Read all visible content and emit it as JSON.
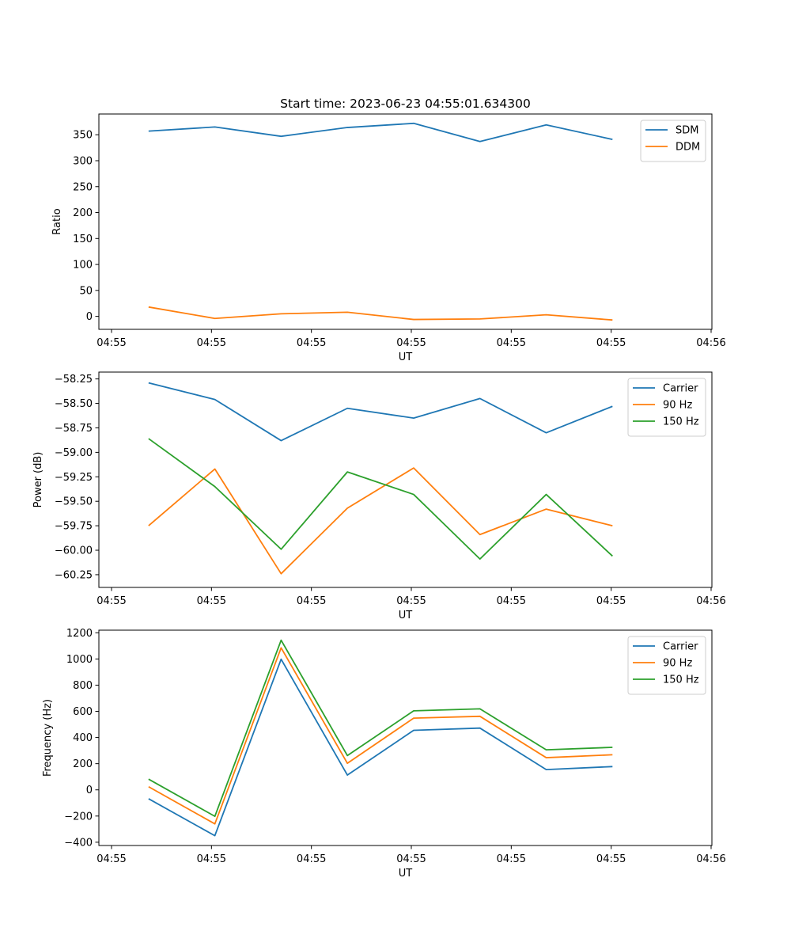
{
  "figure": {
    "title": "Start time: 2023-06-23 04:55:01.634300"
  },
  "chart_data": [
    {
      "type": "line",
      "title": "Start time: 2023-06-23 04:55:01.634300",
      "xlabel": "UT",
      "ylabel": "Ratio",
      "x_tick_labels": [
        "04:55",
        "04:55",
        "04:55",
        "04:55",
        "04:55",
        "04:55",
        "04:55"
      ],
      "x_last_tick_label": "04:56",
      "xlim": [
        0,
        9.25
      ],
      "x": [
        0.75,
        1.75,
        2.75,
        3.75,
        4.75,
        5.75,
        6.75,
        7.75
      ],
      "ylim": [
        -25,
        390
      ],
      "yticks": [
        0,
        50,
        100,
        150,
        200,
        250,
        300,
        350
      ],
      "grid": false,
      "legend": "upper-right",
      "series": [
        {
          "name": "SDM",
          "color": "#1f77b4",
          "values": [
            357,
            365,
            347,
            364,
            372,
            337,
            369,
            341
          ]
        },
        {
          "name": "DDM",
          "color": "#ff7f0e",
          "values": [
            18,
            -4,
            5,
            8,
            -6,
            -5,
            3,
            -7
          ]
        }
      ]
    },
    {
      "type": "line",
      "title": "",
      "xlabel": "UT",
      "ylabel": "Power (dB)",
      "x_tick_labels": [
        "04:55",
        "04:55",
        "04:55",
        "04:55",
        "04:55",
        "04:55",
        "04:55"
      ],
      "x_last_tick_label": "04:56",
      "xlim": [
        0,
        9.25
      ],
      "x": [
        0.75,
        1.75,
        2.75,
        3.75,
        4.75,
        5.75,
        6.75,
        7.75
      ],
      "ylim": [
        -60.38,
        -58.18
      ],
      "yticks": [
        -60.25,
        -60.0,
        -59.75,
        -59.5,
        -59.25,
        -59.0,
        -58.75,
        -58.5,
        -58.25
      ],
      "ytick_labels": [
        "−60.25",
        "−60.00",
        "−59.75",
        "−59.50",
        "−59.25",
        "−59.00",
        "−58.75",
        "−58.50",
        "−58.25"
      ],
      "grid": false,
      "legend": "upper-right",
      "series": [
        {
          "name": "Carrier",
          "color": "#1f77b4",
          "values": [
            -58.29,
            -58.46,
            -58.88,
            -58.55,
            -58.65,
            -58.45,
            -58.8,
            -58.53
          ]
        },
        {
          "name": "90 Hz",
          "color": "#ff7f0e",
          "values": [
            -59.75,
            -59.17,
            -60.24,
            -59.57,
            -59.16,
            -59.84,
            -59.58,
            -59.75
          ]
        },
        {
          "name": "150 Hz",
          "color": "#2ca02c",
          "values": [
            -58.86,
            -59.35,
            -59.99,
            -59.2,
            -59.43,
            -60.09,
            -59.43,
            -60.06
          ]
        }
      ]
    },
    {
      "type": "line",
      "title": "",
      "xlabel": "UT",
      "ylabel": "Frequency (Hz)",
      "x_tick_labels": [
        "04:55",
        "04:55",
        "04:55",
        "04:55",
        "04:55",
        "04:55",
        "04:55"
      ],
      "x_last_tick_label": "04:56",
      "xlim": [
        0,
        9.25
      ],
      "x": [
        0.75,
        1.75,
        2.75,
        3.75,
        4.75,
        5.75,
        6.75,
        7.75
      ],
      "ylim": [
        -425,
        1220
      ],
      "yticks": [
        -400,
        -200,
        0,
        200,
        400,
        600,
        800,
        1000,
        1200
      ],
      "ytick_labels": [
        "−400",
        "−200",
        "0",
        "200",
        "400",
        "600",
        "800",
        "1000",
        "1200"
      ],
      "grid": false,
      "legend": "upper-right",
      "series": [
        {
          "name": "Carrier",
          "color": "#1f77b4",
          "values": [
            -68,
            -350,
            998,
            113,
            455,
            472,
            155,
            178
          ]
        },
        {
          "name": "90 Hz",
          "color": "#ff7f0e",
          "values": [
            24,
            -260,
            1085,
            203,
            548,
            562,
            246,
            268
          ]
        },
        {
          "name": "150 Hz",
          "color": "#2ca02c",
          "values": [
            82,
            -202,
            1143,
            262,
            604,
            619,
            306,
            325
          ]
        }
      ]
    }
  ]
}
